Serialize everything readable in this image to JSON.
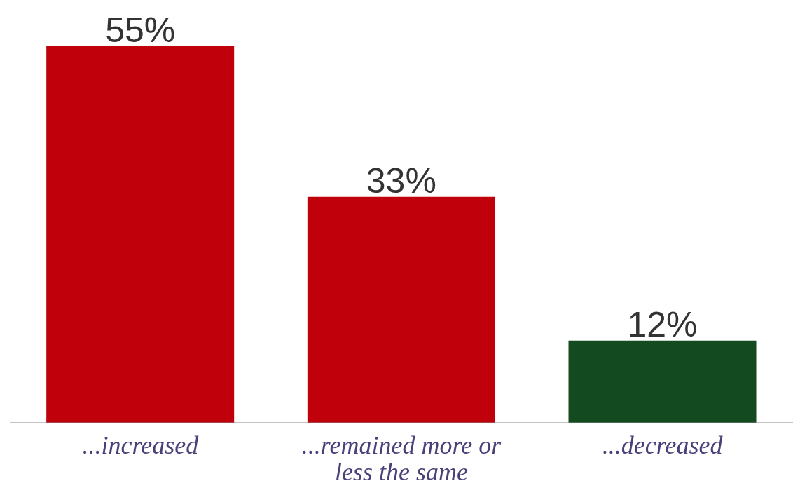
{
  "chart_data": {
    "type": "bar",
    "categories": [
      "...increased",
      "...remained more or less the same",
      "...decreased"
    ],
    "values": [
      55,
      33,
      12
    ],
    "colors": [
      "#c0000b",
      "#c0000b",
      "#134a20"
    ],
    "value_labels": [
      "55%",
      "33%",
      "12%"
    ]
  }
}
